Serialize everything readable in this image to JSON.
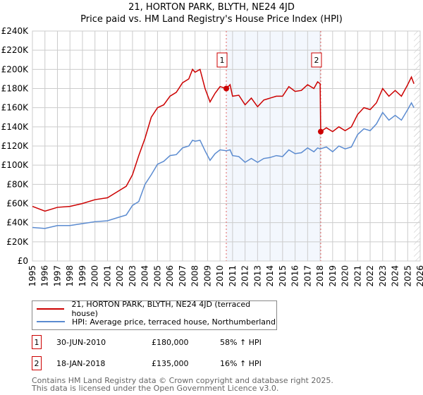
{
  "chart_data": {
    "type": "line",
    "title": "21, HORTON PARK, BLYTH, NE24 4JD",
    "subtitle": "Price paid vs. HM Land Registry's House Price Index (HPI)",
    "xlim": [
      1995,
      2026
    ],
    "ylim": [
      0,
      240000
    ],
    "x_ticks": [
      "1995",
      "1996",
      "1997",
      "1998",
      "1999",
      "2000",
      "2001",
      "2002",
      "2003",
      "2004",
      "2005",
      "2006",
      "2007",
      "2008",
      "2009",
      "2010",
      "2011",
      "2012",
      "2013",
      "2014",
      "2015",
      "2016",
      "2017",
      "2018",
      "2019",
      "2020",
      "2021",
      "2022",
      "2023",
      "2024",
      "2025",
      "2026"
    ],
    "y_ticks": [
      "£0",
      "£20K",
      "£40K",
      "£60K",
      "£80K",
      "£100K",
      "£120K",
      "£140K",
      "£160K",
      "£180K",
      "£200K",
      "£220K",
      "£240K"
    ],
    "grid": true,
    "series": [
      {
        "name": "21, HORTON PARK, BLYTH, NE24 4JD (terraced house)",
        "color": "#cc0000",
        "x": [
          1995,
          1996,
          1997,
          1998,
          1999,
          2000,
          2001,
          2002,
          2002.5,
          2003,
          2003.5,
          2004,
          2004.5,
          2005,
          2005.5,
          2006,
          2006.5,
          2007,
          2007.5,
          2007.8,
          2008,
          2008.4,
          2008.8,
          2009.2,
          2009.6,
          2010,
          2010.5,
          2010.8,
          2011,
          2011.5,
          2012,
          2012.5,
          2013,
          2013.5,
          2014,
          2014.5,
          2015,
          2015.5,
          2016,
          2016.5,
          2017,
          2017.5,
          2017.8,
          2018,
          2018.05,
          2018.5,
          2019,
          2019.5,
          2020,
          2020.5,
          2021,
          2021.5,
          2022,
          2022.5,
          2023,
          2023.5,
          2024,
          2024.5,
          2025,
          2025.3,
          2025.5
        ],
        "y": [
          57000,
          52000,
          56000,
          57000,
          60000,
          64000,
          66000,
          74000,
          78000,
          90000,
          110000,
          128000,
          150000,
          160000,
          163000,
          172000,
          176000,
          186000,
          190000,
          200000,
          197000,
          200000,
          180000,
          166000,
          175000,
          182000,
          180000,
          184000,
          172000,
          173000,
          163000,
          170000,
          161000,
          168000,
          170000,
          172000,
          172000,
          182000,
          177000,
          178000,
          184000,
          180000,
          187000,
          185000,
          135000,
          139000,
          135000,
          140000,
          136000,
          140000,
          153000,
          160000,
          158000,
          165000,
          180000,
          172000,
          178000,
          172000,
          184000,
          192000,
          185000
        ]
      },
      {
        "name": "HPI: Average price, terraced house, Northumberland",
        "color": "#5b8bd0",
        "x": [
          1995,
          1996,
          1997,
          1998,
          1999,
          2000,
          2001,
          2002,
          2002.5,
          2003,
          2003.5,
          2004,
          2004.5,
          2005,
          2005.5,
          2006,
          2006.5,
          2007,
          2007.5,
          2007.8,
          2008,
          2008.4,
          2008.8,
          2009.2,
          2009.6,
          2010,
          2010.5,
          2010.8,
          2011,
          2011.5,
          2012,
          2012.5,
          2013,
          2013.5,
          2014,
          2014.5,
          2015,
          2015.5,
          2016,
          2016.5,
          2017,
          2017.5,
          2017.8,
          2018,
          2018.5,
          2019,
          2019.5,
          2020,
          2020.5,
          2021,
          2021.5,
          2022,
          2022.5,
          2023,
          2023.5,
          2024,
          2024.5,
          2025,
          2025.3,
          2025.5
        ],
        "y": [
          35000,
          34000,
          37000,
          37000,
          39000,
          41000,
          42000,
          46000,
          48000,
          58000,
          62000,
          80000,
          90000,
          101000,
          104000,
          110000,
          111000,
          118000,
          120000,
          126000,
          125000,
          126000,
          115000,
          105000,
          112000,
          116000,
          115000,
          116000,
          110000,
          109000,
          103000,
          107000,
          103000,
          107000,
          108000,
          110000,
          109000,
          116000,
          112000,
          113000,
          118000,
          114000,
          118000,
          117000,
          119000,
          114000,
          120000,
          117000,
          119000,
          132000,
          138000,
          136000,
          143000,
          155000,
          147000,
          152000,
          147000,
          158000,
          165000,
          160000
        ]
      }
    ],
    "sales": [
      {
        "label": "1",
        "x": 2010.5,
        "y": 180000
      },
      {
        "label": "2",
        "x": 2018.05,
        "y": 135000
      }
    ],
    "shaded_range": [
      2010.5,
      2018.05
    ],
    "hatched_from": 2025.5
  },
  "legend": {
    "red": "21, HORTON PARK, BLYTH, NE24 4JD (terraced house)",
    "blue": "HPI: Average price, terraced house, Northumberland"
  },
  "table": [
    {
      "num": "1",
      "date": "30-JUN-2010",
      "price": "£180,000",
      "hpi": "58% ↑ HPI"
    },
    {
      "num": "2",
      "date": "18-JAN-2018",
      "price": "£135,000",
      "hpi": "16% ↑ HPI"
    }
  ],
  "footer": [
    "Contains HM Land Registry data © Crown copyright and database right 2025.",
    "This data is licensed under the Open Government Licence v3.0."
  ]
}
